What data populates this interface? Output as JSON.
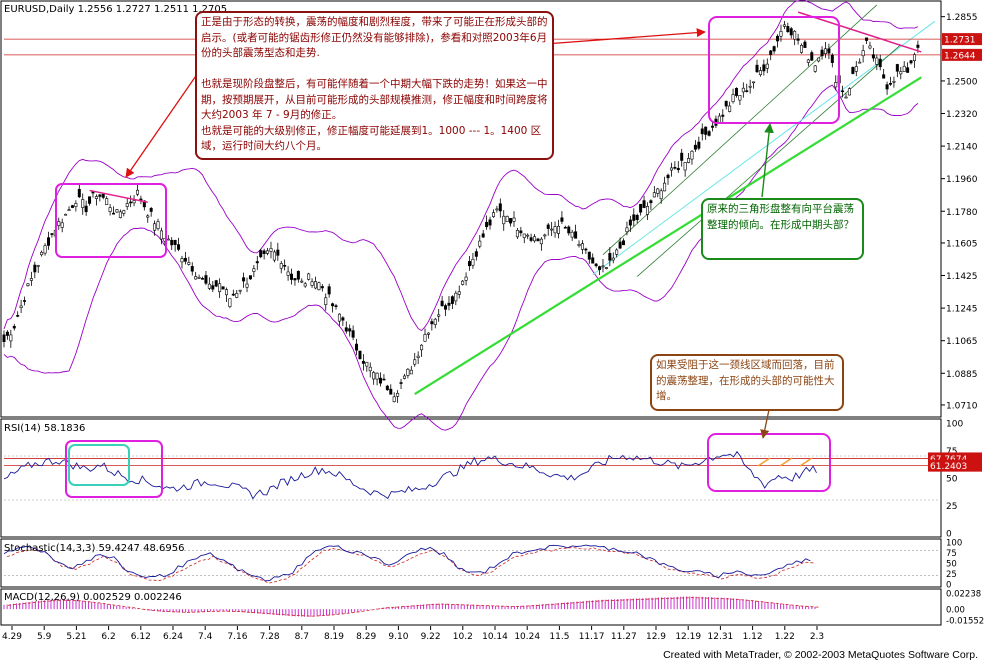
{
  "colors": {
    "candle": "#000000",
    "bollinger": "#9a00c8",
    "channel": "#2e7d32",
    "trend_green": "#33dd33",
    "trend_cyan": "#66e6e6",
    "pink_line": "#e0208c",
    "hline_red": "#cc2222",
    "rsi_line": "#1a1a99",
    "stoch_main": "#1a1a99",
    "stoch_signal": "#cc2222",
    "macd_hist": "#cc33cc",
    "macd_signal": "#cc2222",
    "highlight_box": "#e020e0",
    "cyan_box": "#38d0b8",
    "arrow_red": "#dd1111",
    "arrow_green": "#1a8a1a",
    "arrow_brown": "#8b4513",
    "price_tag": "#cc1111"
  },
  "chart_data": [
    {
      "type": "candlestick",
      "title": "EURUSD,Daily  1.2556 1.2727 1.2511 1.2705",
      "price_axis_ticks": [
        "1.2855",
        "1.2500",
        "1.2320",
        "1.2140",
        "1.1960",
        "1.1780",
        "1.1605",
        "1.1425",
        "1.1245",
        "1.1065",
        "1.0885",
        "1.0710"
      ],
      "price_axis_values": [
        1.2855,
        1.25,
        1.232,
        1.214,
        1.196,
        1.178,
        1.1605,
        1.1425,
        1.1245,
        1.1065,
        1.0885,
        1.071
      ],
      "price_tags": [
        "1.2731",
        "1.2644"
      ],
      "price_tag_values": [
        1.2731,
        1.2644
      ],
      "x_tick_labels": [
        "4.29",
        "5.9",
        "5.21",
        "6.2",
        "6.12",
        "6.24",
        "7.4",
        "7.16",
        "7.28",
        "8.7",
        "8.19",
        "8.29",
        "9.10",
        "9.22",
        "10.2",
        "10.14",
        "10.24",
        "11.5",
        "11.17",
        "11.27",
        "12.9",
        "12.19",
        "12.31",
        "1.12",
        "1.22",
        "2.3"
      ],
      "close_path": [
        [
          0,
          1.106
        ],
        [
          3,
          1.115
        ],
        [
          6,
          1.131
        ],
        [
          9,
          1.145
        ],
        [
          12,
          1.158
        ],
        [
          15,
          1.169
        ],
        [
          18,
          1.176
        ],
        [
          21,
          1.185
        ],
        [
          24,
          1.18
        ],
        [
          27,
          1.188
        ],
        [
          30,
          1.184
        ],
        [
          33,
          1.176
        ],
        [
          36,
          1.182
        ],
        [
          39,
          1.188
        ],
        [
          42,
          1.178
        ],
        [
          45,
          1.17
        ],
        [
          48,
          1.162
        ],
        [
          51,
          1.156
        ],
        [
          54,
          1.15
        ],
        [
          57,
          1.142
        ],
        [
          60,
          1.135
        ],
        [
          63,
          1.138
        ],
        [
          66,
          1.13
        ],
        [
          69,
          1.136
        ],
        [
          72,
          1.142
        ],
        [
          75,
          1.15
        ],
        [
          78,
          1.156
        ],
        [
          81,
          1.152
        ],
        [
          84,
          1.142
        ],
        [
          87,
          1.138
        ],
        [
          90,
          1.142
        ],
        [
          93,
          1.136
        ],
        [
          96,
          1.126
        ],
        [
          99,
          1.118
        ],
        [
          102,
          1.106
        ],
        [
          105,
          1.096
        ],
        [
          108,
          1.088
        ],
        [
          111,
          1.083
        ],
        [
          114,
          1.078
        ],
        [
          117,
          1.085
        ],
        [
          120,
          1.096
        ],
        [
          123,
          1.11
        ],
        [
          126,
          1.12
        ],
        [
          129,
          1.126
        ],
        [
          132,
          1.132
        ],
        [
          135,
          1.144
        ],
        [
          138,
          1.156
        ],
        [
          141,
          1.168
        ],
        [
          144,
          1.178
        ],
        [
          147,
          1.176
        ],
        [
          150,
          1.17
        ],
        [
          153,
          1.166
        ],
        [
          156,
          1.162
        ],
        [
          159,
          1.166
        ],
        [
          162,
          1.172
        ],
        [
          165,
          1.166
        ],
        [
          168,
          1.16
        ],
        [
          171,
          1.152
        ],
        [
          174,
          1.144
        ],
        [
          177,
          1.148
        ],
        [
          180,
          1.158
        ],
        [
          183,
          1.17
        ],
        [
          186,
          1.176
        ],
        [
          189,
          1.183
        ],
        [
          192,
          1.192
        ],
        [
          195,
          1.199
        ],
        [
          198,
          1.205
        ],
        [
          201,
          1.211
        ],
        [
          204,
          1.218
        ],
        [
          207,
          1.225
        ],
        [
          210,
          1.232
        ],
        [
          213,
          1.24
        ],
        [
          216,
          1.244
        ],
        [
          219,
          1.25
        ],
        [
          222,
          1.258
        ],
        [
          225,
          1.268
        ],
        [
          228,
          1.282
        ],
        [
          231,
          1.276
        ],
        [
          234,
          1.266
        ],
        [
          237,
          1.26
        ],
        [
          240,
          1.27
        ],
        [
          243,
          1.252
        ],
        [
          246,
          1.242
        ],
        [
          249,
          1.258
        ],
        [
          252,
          1.27
        ],
        [
          255,
          1.26
        ],
        [
          258,
          1.248
        ],
        [
          261,
          1.254
        ],
        [
          264,
          1.256
        ],
        [
          267,
          1.2705
        ]
      ],
      "xlim": [
        0,
        272
      ],
      "ylim": [
        1.066,
        1.2925
      ]
    },
    {
      "type": "line",
      "title": "RSI(14)  58.1836",
      "y_ticks": [
        "100",
        "75",
        "50",
        "25",
        "0"
      ],
      "y_tick_values": [
        100,
        75,
        50,
        25,
        0
      ],
      "price_tags": [
        "67.7674",
        "61.2403"
      ],
      "price_tag_values": [
        67.7674,
        61.2403
      ],
      "ylim": [
        0,
        100
      ],
      "values_sampled": [
        48,
        56,
        62,
        65,
        66,
        62,
        58,
        62,
        55,
        50,
        48,
        44,
        40,
        42,
        45,
        47,
        44,
        40,
        35,
        38,
        45,
        50,
        55,
        58,
        54,
        47,
        40,
        36,
        35,
        38,
        40,
        46,
        52,
        58,
        65,
        68,
        66,
        62,
        60,
        56,
        52,
        50,
        55,
        62,
        68,
        70,
        68,
        66,
        63,
        60,
        64,
        68,
        72,
        70,
        55,
        44,
        52,
        50,
        56,
        58
      ]
    },
    {
      "type": "line",
      "title": "Stochastic(14,3,3)  59.4247  48.6956",
      "y_ticks": [
        "100",
        "75",
        "50",
        "25",
        "0"
      ],
      "y_tick_values": [
        100,
        75,
        50,
        25,
        0
      ],
      "ylim": [
        0,
        100
      ],
      "values_sampled": [
        70,
        85,
        90,
        75,
        50,
        40,
        55,
        70,
        60,
        30,
        20,
        15,
        25,
        45,
        60,
        70,
        55,
        35,
        20,
        10,
        15,
        30,
        60,
        85,
        90,
        80,
        75,
        60,
        45,
        60,
        80,
        85,
        70,
        40,
        25,
        30,
        50,
        70,
        80,
        85,
        88,
        90,
        92,
        88,
        85,
        80,
        75,
        60,
        45,
        35,
        30,
        25,
        20,
        30,
        25,
        20,
        30,
        45,
        55,
        59
      ]
    },
    {
      "type": "bar",
      "title": "MACD(12,26,9)  0.002529  0.002246",
      "y_ticks": [
        "0.02238",
        "0.00",
        "-0.01552"
      ],
      "y_tick_values": [
        0.02238,
        0.0,
        -0.01552
      ],
      "ylim": [
        -0.0195,
        0.0255
      ],
      "values_sampled": [
        0.006,
        0.009,
        0.012,
        0.014,
        0.013,
        0.01,
        0.006,
        0.002,
        -0.002,
        -0.004,
        -0.005,
        -0.004,
        -0.003,
        -0.004,
        -0.006,
        -0.008,
        -0.01,
        -0.011,
        -0.009,
        -0.006,
        -0.002,
        0.002,
        0.004,
        0.006,
        0.008,
        0.007,
        0.006,
        0.005,
        0.004,
        0.005,
        0.007,
        0.009,
        0.011,
        0.013,
        0.014,
        0.015,
        0.016,
        0.017,
        0.018,
        0.017,
        0.016,
        0.014,
        0.011,
        0.008,
        0.005,
        0.003
      ]
    }
  ],
  "annotations": {
    "top_red": "正是由于形态的转换，震荡的幅度和剧烈程度，带来了可能正在形成头部的启示。(或者可能的锯齿形修正仍然没有能够排除)，参看和对照2003年6月份的头部震荡型态和走势.\n\n也就是现阶段盘整后，有可能伴随着一个中期大幅下跌的走势！如果这一中期，按预期展开，从目前可能形成的头部规模推测，修正幅度和时间跨度将大约2003 年 7 - 9月的修正。\n也就是可能的大级别修正，修正幅度可能延展到1。1000 --- 1。1400 区域，运行时间大约八个月。",
    "green": "原来的三角形盘整有向平台震荡整理的倾向。在形成中期头部？",
    "brown": "如果受阻于这一颈线区域而回落，目前的震荡整理，在形成的头部的可能性大增。"
  },
  "footer": "Created with MetaTrader, © 2002-2003 MetaQuotes Software Corp."
}
